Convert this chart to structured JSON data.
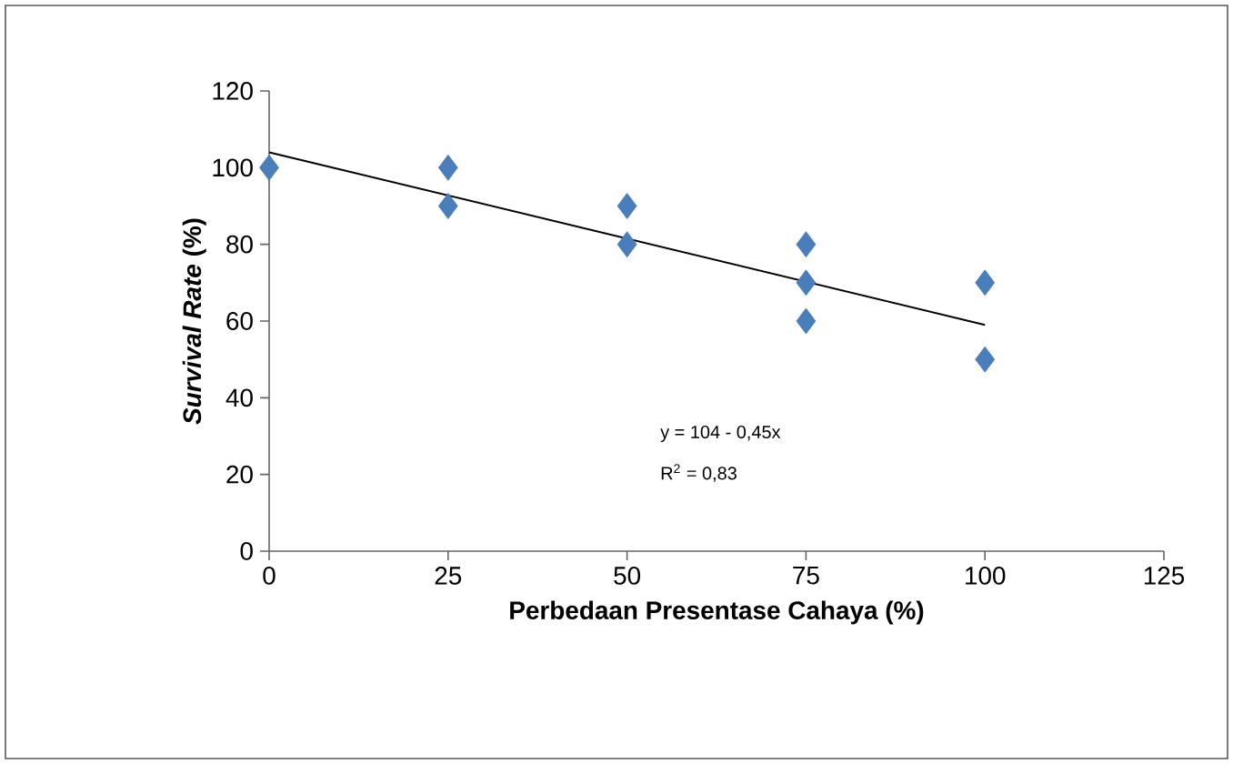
{
  "chart_data": {
    "type": "scatter",
    "xlabel": "Perbedaan Presentase Cahaya (%)",
    "ylabel": "*Survival Rate* (%)",
    "xlim": [
      0,
      125
    ],
    "xticks": [
      0,
      25,
      50,
      75,
      100,
      125
    ],
    "ylim": [
      0,
      120
    ],
    "yticks": [
      0,
      20,
      40,
      60,
      80,
      100,
      120
    ],
    "series": [
      {
        "type": "scatter",
        "marker": "diamond",
        "color": "#4a7ebb",
        "x": [
          0,
          25,
          25,
          50,
          50,
          75,
          75,
          75,
          100,
          100
        ],
        "values": [
          100,
          100,
          90,
          90,
          80,
          80,
          70,
          60,
          70,
          50
        ]
      },
      {
        "type": "line",
        "marker": "none",
        "line_style": "solid",
        "color": "#000000",
        "x": [
          0,
          100
        ],
        "values": [
          104,
          59
        ]
      }
    ],
    "annotations": [
      "y   = 104 - 0,45x",
      "R$^{2}$ = 0,83"
    ]
  }
}
